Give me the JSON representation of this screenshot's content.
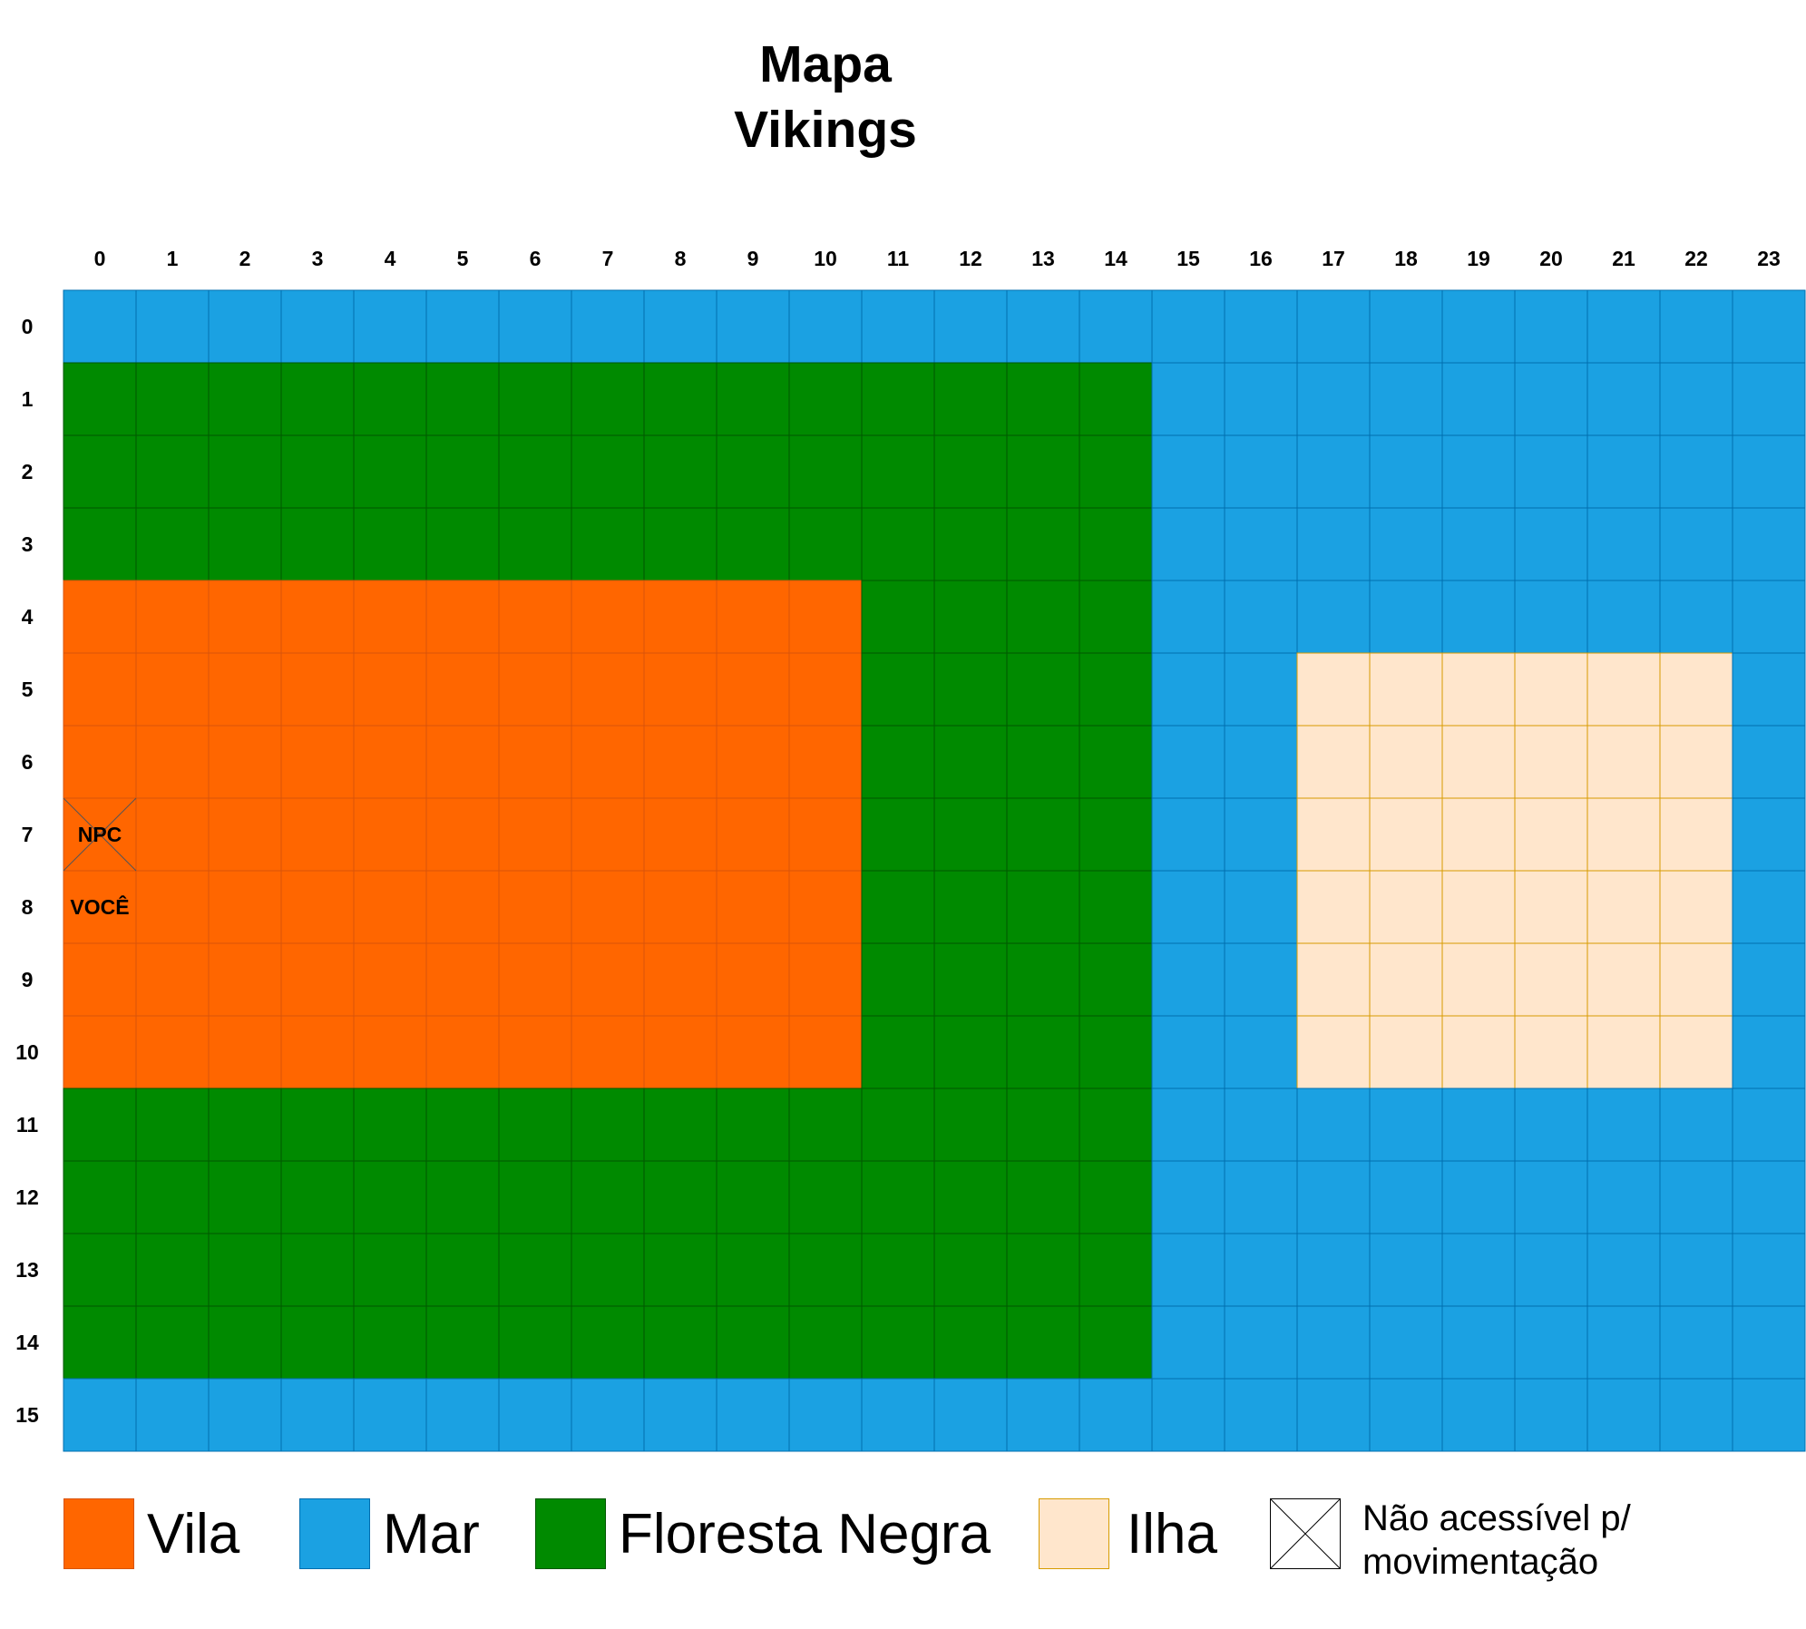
{
  "title": {
    "line1": "Mapa",
    "line2": "Vikings"
  },
  "grid": {
    "columns": [
      "0",
      "1",
      "2",
      "3",
      "4",
      "5",
      "6",
      "7",
      "8",
      "9",
      "10",
      "11",
      "12",
      "13",
      "14",
      "15",
      "16",
      "17",
      "18",
      "19",
      "20",
      "21",
      "22",
      "23"
    ],
    "rows": [
      "0",
      "1",
      "2",
      "3",
      "4",
      "5",
      "6",
      "7",
      "8",
      "9",
      "10",
      "11",
      "12",
      "13",
      "14",
      "15"
    ]
  },
  "terrain": {
    "colors": {
      "vila": {
        "fill": "#FF6600",
        "border": "#D9540A"
      },
      "mar": {
        "fill": "#1BA1E2",
        "border": "#006EAF"
      },
      "floresta": {
        "fill": "#008A00",
        "border": "#005700"
      },
      "ilha": {
        "fill": "#FFE6CC",
        "border": "#D79B00"
      }
    },
    "areas": [
      {
        "type": "floresta",
        "cols": [
          0,
          14
        ],
        "rows": [
          1,
          14
        ]
      },
      {
        "type": "vila",
        "cols": [
          0,
          10
        ],
        "rows": [
          4,
          10
        ]
      },
      {
        "type": "ilha",
        "cols": [
          17,
          22
        ],
        "rows": [
          5,
          10
        ]
      }
    ],
    "default": "mar"
  },
  "markers": [
    {
      "label": "NPC",
      "col": 0,
      "row": 7,
      "blocked": true
    },
    {
      "label": "VOCÊ",
      "col": 0,
      "row": 8,
      "blocked": false
    }
  ],
  "legend": {
    "items": [
      {
        "key": "vila",
        "label": "Vila"
      },
      {
        "key": "mar",
        "label": "Mar"
      },
      {
        "key": "floresta",
        "label": "Floresta Negra"
      },
      {
        "key": "ilha",
        "label": "Ilha"
      },
      {
        "key": "blocked",
        "label": "Não acessível p/ movimentação"
      }
    ]
  }
}
